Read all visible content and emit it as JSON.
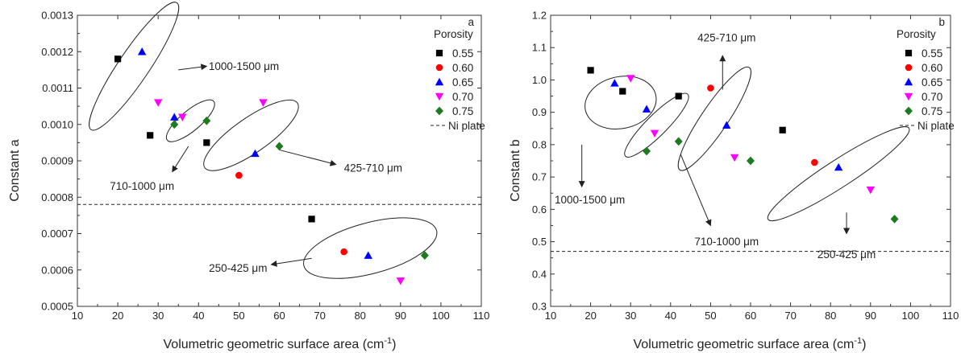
{
  "colors": {
    "0.55": "#000000",
    "0.60": "#ff0000",
    "0.65": "#0000ff",
    "0.70": "#ff00ff",
    "0.75": "#1e7a1e"
  },
  "markers": {
    "0.55": "square",
    "0.60": "circle",
    "0.65": "triangle-up",
    "0.70": "triangle-down",
    "0.75": "diamond"
  },
  "chart_data": [
    {
      "type": "scatter",
      "panel_label": "a",
      "xlabel": "Volumetric geometric surface area (cm",
      "xlabel_sup": "-1",
      "xlabel_end": ")",
      "ylabel": "Constant a",
      "xlim": [
        10,
        110
      ],
      "ylim": [
        0.0005,
        0.0013
      ],
      "xticks": [
        10,
        20,
        30,
        40,
        50,
        60,
        70,
        80,
        90,
        100,
        110
      ],
      "xtick_labels": [
        "10",
        "20",
        "30",
        "40",
        "50",
        "60",
        "70",
        "80",
        "90",
        "100",
        "110"
      ],
      "yticks": [
        0.0005,
        0.0006,
        0.0007,
        0.0008,
        0.0009,
        0.001,
        0.0011,
        0.0012,
        0.0013
      ],
      "ytick_labels": [
        "0.0005",
        "0.0006",
        "0.0007",
        "0.0008",
        "0.0009",
        "0.0010",
        "0.0011",
        "0.0012",
        "0.0013"
      ],
      "legend_title": "Porosity",
      "legend_position": "top-right",
      "reference_line": {
        "name": "Ni plate",
        "y": 0.00078
      },
      "series": [
        {
          "name": "0.55",
          "points": [
            [
              20,
              0.00118
            ],
            [
              28,
              0.00097
            ],
            [
              42,
              0.00095
            ],
            [
              68,
              0.00074
            ]
          ]
        },
        {
          "name": "0.60",
          "points": [
            [
              50,
              0.00086
            ],
            [
              76,
              0.00065
            ]
          ]
        },
        {
          "name": "0.65",
          "points": [
            [
              26,
              0.0012
            ],
            [
              34,
              0.00102
            ],
            [
              54,
              0.00092
            ],
            [
              82,
              0.00064
            ]
          ]
        },
        {
          "name": "0.70",
          "points": [
            [
              30,
              0.00106
            ],
            [
              36,
              0.00102
            ],
            [
              56,
              0.00106
            ],
            [
              90,
              0.00057
            ]
          ]
        },
        {
          "name": "0.75",
          "points": [
            [
              34,
              0.001
            ],
            [
              42,
              0.00101
            ],
            [
              60,
              0.00094
            ],
            [
              96,
              0.00064
            ]
          ]
        }
      ],
      "annotations": [
        {
          "text": "1000-1500 μm",
          "ellipse": {
            "cx": 24,
            "cy": 0.00116,
            "rx": 19,
            "ry": 3.8,
            "angle": -56
          },
          "arrow_from": [
            35,
            0.00115
          ],
          "arrow_to": [
            42,
            0.00116
          ],
          "text_at": [
            42.5,
            0.00116
          ],
          "anchor": "start"
        },
        {
          "text": "710-1000 μm",
          "ellipse": {
            "cx": 38,
            "cy": 0.00101,
            "rx": 7.5,
            "ry": 2.5,
            "angle": -40
          },
          "arrow_from": [
            37.5,
            0.00094
          ],
          "arrow_to": [
            33.5,
            0.00087
          ],
          "text_at": [
            26,
            0.00083
          ],
          "anchor": "middle"
        },
        {
          "text": "425-710 μm",
          "ellipse": {
            "cx": 53,
            "cy": 0.00097,
            "rx": 14,
            "ry": 4.3,
            "angle": -35
          },
          "arrow_from": [
            60,
            0.00093
          ],
          "arrow_to": [
            74,
            0.00089
          ],
          "text_at": [
            76,
            0.00088
          ],
          "anchor": "start"
        },
        {
          "text": "250-425 μm",
          "ellipse": {
            "cx": 82.5,
            "cy": 0.00066,
            "rx": 17,
            "ry": 6.3,
            "angle": -15
          },
          "arrow_from": [
            68,
            0.000632
          ],
          "arrow_to": [
            58,
            0.000615
          ],
          "text_at": [
            57,
            0.000605
          ],
          "anchor": "end"
        }
      ]
    },
    {
      "type": "scatter",
      "panel_label": "b",
      "xlabel": "Volumetric geometric surface area (cm",
      "xlabel_sup": "-1",
      "xlabel_end": ")",
      "ylabel": "Constant b",
      "xlim": [
        10,
        110
      ],
      "ylim": [
        0.3,
        1.2
      ],
      "xticks": [
        10,
        20,
        30,
        40,
        50,
        60,
        70,
        80,
        90,
        100,
        110
      ],
      "xtick_labels": [
        "10",
        "20",
        "30",
        "40",
        "50",
        "60",
        "70",
        "80",
        "90",
        "100",
        "110"
      ],
      "yticks": [
        0.3,
        0.4,
        0.5,
        0.6,
        0.7,
        0.8,
        0.9,
        1.0,
        1.1,
        1.2
      ],
      "ytick_labels": [
        "0.3",
        "0.4",
        "0.5",
        "0.6",
        "0.7",
        "0.8",
        "0.9",
        "1.0",
        "1.1",
        "1.2"
      ],
      "legend_title": "Porosity",
      "legend_position": "top-right",
      "reference_line": {
        "name": "Ni plate",
        "y": 0.47
      },
      "series": [
        {
          "name": "0.55",
          "points": [
            [
              20,
              1.03
            ],
            [
              28,
              0.965
            ],
            [
              42,
              0.95
            ],
            [
              68,
              0.845
            ]
          ]
        },
        {
          "name": "0.60",
          "points": [
            [
              50,
              0.975
            ],
            [
              76,
              0.745
            ]
          ]
        },
        {
          "name": "0.65",
          "points": [
            [
              26,
              0.99
            ],
            [
              34,
              0.91
            ],
            [
              54,
              0.86
            ],
            [
              82,
              0.73
            ]
          ]
        },
        {
          "name": "0.70",
          "points": [
            [
              30,
              1.005
            ],
            [
              36,
              0.835
            ],
            [
              56,
              0.76
            ],
            [
              90,
              0.66
            ]
          ]
        },
        {
          "name": "0.75",
          "points": [
            [
              34,
              0.78
            ],
            [
              42,
              0.81
            ],
            [
              60,
              0.75
            ],
            [
              96,
              0.57
            ]
          ]
        }
      ],
      "annotations": [
        {
          "text": "1000-1500 μm",
          "ellipse": {
            "cx": 27.5,
            "cy": 0.93,
            "rx": 9,
            "ry": 6.5,
            "angle": -12
          },
          "arrow_from": [
            17.8,
            0.8
          ],
          "arrow_to": [
            17.8,
            0.67
          ],
          "text_at": [
            11,
            0.63
          ],
          "anchor": "start"
        },
        {
          "text": "710-1000 μm",
          "ellipse": {
            "cx": 36.5,
            "cy": 0.86,
            "rx": 11,
            "ry": 2.6,
            "angle": -45
          },
          "arrow_from": [
            42.5,
            0.77
          ],
          "arrow_to": [
            50,
            0.55
          ],
          "text_at": [
            54,
            0.5
          ],
          "anchor": "middle"
        },
        {
          "text": "425-710 μm",
          "ellipse": {
            "cx": 51,
            "cy": 0.88,
            "rx": 15.5,
            "ry": 3.3,
            "angle": -56
          },
          "arrow_from": [
            53,
            0.97
          ],
          "arrow_to": [
            53,
            1.075
          ],
          "text_at": [
            54,
            1.13
          ],
          "anchor": "middle"
        },
        {
          "text": "250-425 μm",
          "ellipse": {
            "cx": 82,
            "cy": 0.71,
            "rx": 21,
            "ry": 3.4,
            "angle": -33
          },
          "arrow_from": [
            84,
            0.59
          ],
          "arrow_to": [
            84,
            0.525
          ],
          "text_at": [
            84,
            0.46
          ],
          "anchor": "middle"
        }
      ]
    }
  ]
}
